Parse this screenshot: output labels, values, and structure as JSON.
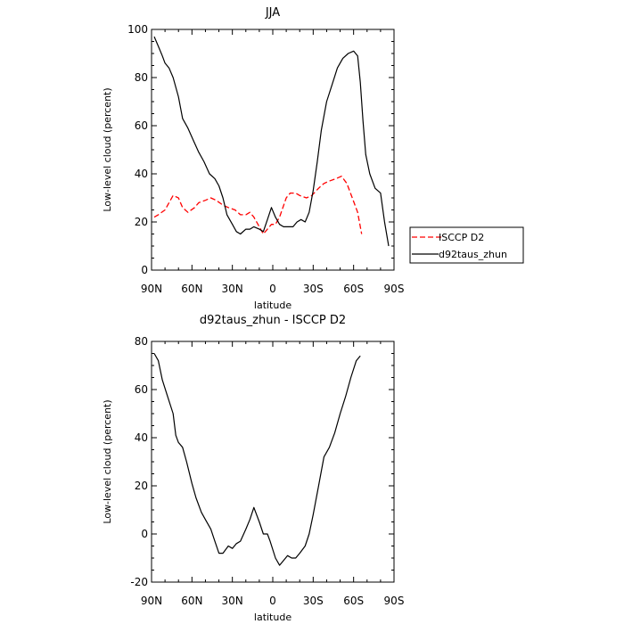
{
  "chart_data": [
    {
      "type": "line",
      "title": "JJA",
      "xlabel": "latitude",
      "ylabel": "Low-level cloud (percent)",
      "xlim": [
        90,
        -90
      ],
      "ylim": [
        0,
        100
      ],
      "x_ticks": [
        90,
        60,
        30,
        0,
        -30,
        -60,
        -90
      ],
      "x_tick_labels": [
        "90N",
        "60N",
        "30N",
        "0",
        "30S",
        "60S",
        "90S"
      ],
      "y_ticks": [
        0,
        20,
        40,
        60,
        80,
        100
      ],
      "y_tick_labels": [
        "0",
        "20",
        "40",
        "60",
        "80",
        "100"
      ],
      "grid": false,
      "legend": {
        "placement": "outside-right",
        "entries": [
          "ISCCP D2",
          "d92taus_zhun"
        ]
      },
      "series": [
        {
          "name": "ISCCP D2",
          "color": "#ff0000",
          "dash": "dashed",
          "x": [
            88,
            85,
            80,
            77,
            74,
            70,
            67,
            63,
            58,
            55,
            50,
            46,
            42,
            37,
            33,
            28,
            24,
            20,
            17,
            14,
            10,
            7,
            4,
            1,
            -2,
            -5,
            -10,
            -13,
            -17,
            -20,
            -25,
            -29,
            -34,
            -38,
            -42,
            -47,
            -51,
            -55,
            -59,
            -63,
            -66
          ],
          "y": [
            22,
            23,
            25,
            28,
            31,
            30,
            26,
            24,
            26,
            28,
            29,
            30,
            29,
            27,
            26,
            25,
            23,
            23,
            24,
            22,
            18,
            15,
            17,
            19,
            19,
            22,
            30,
            32,
            32,
            31,
            30,
            31,
            34,
            36,
            37,
            38,
            39,
            36,
            30,
            24,
            15
          ]
        },
        {
          "name": "d92taus_zhun",
          "color": "#000000",
          "dash": "solid",
          "x": [
            88,
            85,
            82,
            80,
            77,
            74,
            70,
            67,
            63,
            59,
            55,
            51,
            47,
            43,
            40,
            37,
            34,
            30,
            27,
            24,
            20,
            17,
            14,
            10,
            7,
            4,
            1,
            -2,
            -5,
            -8,
            -12,
            -15,
            -18,
            -21,
            -24,
            -27,
            -30,
            -33,
            -36,
            -40,
            -44,
            -48,
            -52,
            -56,
            -60,
            -63,
            -65,
            -67,
            -69,
            -72,
            -76,
            -80,
            -83,
            -86
          ],
          "y": [
            97,
            93,
            89,
            86,
            84,
            80,
            72,
            63,
            59,
            54,
            49,
            45,
            40,
            38,
            35,
            30,
            23,
            19,
            16,
            15,
            17,
            17,
            18,
            17,
            16,
            21,
            26,
            22,
            19,
            18,
            18,
            18,
            20,
            21,
            20,
            24,
            33,
            45,
            58,
            70,
            77,
            84,
            88,
            90,
            91,
            89,
            78,
            62,
            48,
            40,
            34,
            32,
            20,
            10
          ]
        }
      ]
    },
    {
      "type": "line",
      "title": "d92taus_zhun - ISCCP D2",
      "xlabel": "latitude",
      "ylabel": "Low-level cloud (percent)",
      "xlim": [
        90,
        -90
      ],
      "ylim": [
        -20,
        80
      ],
      "x_ticks": [
        90,
        60,
        30,
        0,
        -30,
        -60,
        -90
      ],
      "x_tick_labels": [
        "90N",
        "60N",
        "30N",
        "0",
        "30S",
        "60S",
        "90S"
      ],
      "y_ticks": [
        -20,
        0,
        20,
        40,
        60,
        80
      ],
      "y_tick_labels": [
        "-20",
        "0",
        "20",
        "40",
        "60",
        "80"
      ],
      "grid": false,
      "series": [
        {
          "color": "#000000",
          "dash": "solid",
          "x": [
            88,
            85,
            82,
            78,
            74,
            72,
            70,
            67,
            64,
            60,
            57,
            53,
            50,
            46,
            43,
            40,
            37,
            33,
            30,
            27,
            24,
            20,
            17,
            14,
            10,
            7,
            4,
            2,
            -2,
            -5,
            -8,
            -11,
            -14,
            -17,
            -20,
            -24,
            -27,
            -30,
            -34,
            -38,
            -42,
            -46,
            -50,
            -54,
            -58,
            -62,
            -65
          ],
          "y": [
            75,
            72,
            64,
            57,
            50,
            41,
            38,
            36,
            30,
            21,
            15,
            9,
            6,
            2,
            -3,
            -8,
            -8,
            -5,
            -6,
            -4,
            -3,
            2,
            6,
            11,
            5,
            0,
            0,
            -3,
            -10,
            -13,
            -11,
            -9,
            -10,
            -10,
            -8,
            -5,
            0,
            8,
            20,
            32,
            36,
            42,
            50,
            57,
            65,
            72,
            74
          ]
        }
      ]
    }
  ]
}
